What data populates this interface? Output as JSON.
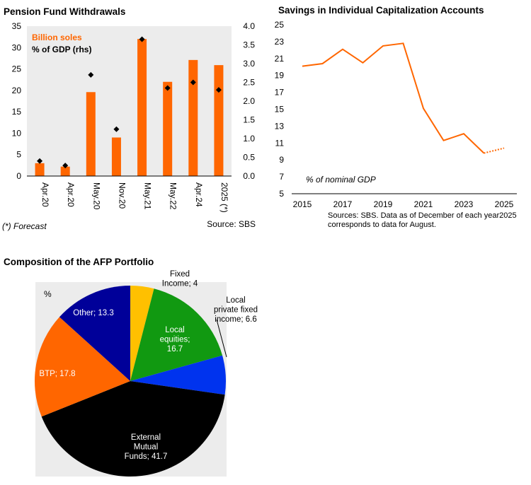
{
  "chart_data": [
    {
      "type": "bar",
      "title": "Pension Fund Withdrawals",
      "categories": [
        "Apr.20",
        "Apr.20",
        "May.20",
        "Nov.20",
        "May.21",
        "May.22",
        "Apr.24",
        "2025 (*)"
      ],
      "series": [
        {
          "name": "Billion soles",
          "type": "bar",
          "axis": "left",
          "values": [
            3.0,
            2.2,
            19.6,
            9.0,
            32.0,
            22.0,
            27.1,
            25.9
          ]
        },
        {
          "name": "% of GDP (rhs)",
          "type": "marker",
          "axis": "right",
          "values": [
            0.4,
            0.28,
            2.7,
            1.25,
            3.65,
            2.35,
            2.5,
            2.3
          ]
        }
      ],
      "ylim": [
        0,
        35
      ],
      "yticks": [
        0,
        5,
        10,
        15,
        20,
        25,
        30,
        35
      ],
      "y2lim": [
        0,
        4
      ],
      "y2ticks": [
        "0.0",
        "0.5",
        "1.0",
        "1.5",
        "2.0",
        "2.5",
        "3.0",
        "3.5",
        "4.0"
      ],
      "footnote": "(*) Forecast",
      "source": "Source: SBS",
      "colors": {
        "bar": "#ff6600",
        "marker": "#000000",
        "plot_bg": "#ececec"
      }
    },
    {
      "type": "line",
      "title": "Savings in Individual Capitalization Accounts",
      "x": [
        2015,
        2016,
        2017,
        2018,
        2019,
        2020,
        2021,
        2022,
        2023,
        2024,
        2025
      ],
      "series": [
        {
          "name": "% of nominal GDP",
          "values": [
            20.1,
            20.4,
            22.1,
            20.5,
            22.5,
            22.8,
            15.1,
            11.3,
            12.1,
            9.8,
            10.4
          ],
          "dashed_from_index": 9
        }
      ],
      "ylim": [
        5,
        25
      ],
      "yticks": [
        5,
        7,
        9,
        11,
        13,
        15,
        17,
        19,
        21,
        23,
        25
      ],
      "xticks": [
        2015,
        2017,
        2019,
        2021,
        2023,
        2025
      ],
      "annotation": "% of nominal GDP",
      "source_lines": [
        "Sources: SBS.  Data as of December of each year2025",
        "corresponds to data for August."
      ],
      "colors": {
        "line": "#ff6600"
      }
    },
    {
      "type": "pie",
      "title": "Composition of the AFP Portfolio",
      "unit": "%",
      "slices": [
        {
          "label": "Fixed Income",
          "value": 4.0,
          "color": "#ffc000",
          "text_lines": [
            "Fixed",
            "Income; 4"
          ]
        },
        {
          "label": "Local equities",
          "value": 16.7,
          "color": "#119911",
          "text_lines": [
            "Local",
            "equities;",
            "16.7"
          ]
        },
        {
          "label": "Local private fixed income",
          "value": 6.6,
          "color": "#0033ee",
          "text_lines": [
            "Local",
            "private fixed",
            "income; 6.6"
          ]
        },
        {
          "label": "External Mutual Funds",
          "value": 41.7,
          "color": "#000000",
          "text_lines": [
            "External",
            "Mutual",
            "Funds; 41.7"
          ]
        },
        {
          "label": "BTP",
          "value": 17.8,
          "color": "#ff6600",
          "text_lines": [
            "BTP; 17.8"
          ]
        },
        {
          "label": "Other",
          "value": 13.3,
          "color": "#000099",
          "text_lines": [
            "Other; 13.3"
          ]
        }
      ],
      "colors": {
        "plot_bg": "#ececec"
      }
    }
  ]
}
